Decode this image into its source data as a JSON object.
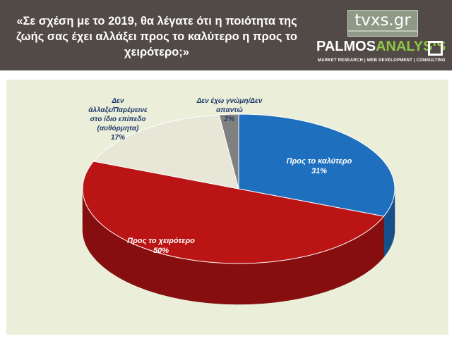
{
  "header": {
    "title": "«Σε σχέση με το 2019, θα λέγατε ότι η ποιότητα της ζωής σας έχει αλλάξει προς το καλύτερο η προς το χειρότερο;»",
    "logo_tvxs": "tvxs.gr",
    "logo_palmos_part1": "PALMOS",
    "logo_palmos_part2": "ANALYSIS",
    "logo_tagline": "MARKET RESEARCH | WEB DEVELOPMENT | CONSULTING",
    "colors": {
      "background": "#524a47",
      "palmos_accent": "#8ec646"
    }
  },
  "chart_data": {
    "type": "pie",
    "title": "«Σε σχέση με το 2019, θα λέγατε ότι η ποιότητα της ζωής σας έχει αλλάξει προς το καλύτερο η προς το χειρότερο;»",
    "style": "3d",
    "slices": [
      {
        "label": "Προς το καλύτερο",
        "value": 31,
        "value_label": "31%",
        "color": "#1f6fbf"
      },
      {
        "label": "Προς το χειρότερο",
        "value": 50,
        "value_label": "50%",
        "color": "#bb1414"
      },
      {
        "label": "Δεν άλλαξε/Παρέμεινε στο ίδιο επίπεδο (αυθόρμητα)",
        "value": 17,
        "value_label": "17%",
        "color": "#e8e6d6"
      },
      {
        "label": "Δεν έχω γνώμη/Δεν απαντώ",
        "value": 2,
        "value_label": "2%",
        "color": "#808080"
      }
    ],
    "label_colors": {
      "inside": "#ffffff",
      "outside": "#1f3a6b"
    }
  }
}
